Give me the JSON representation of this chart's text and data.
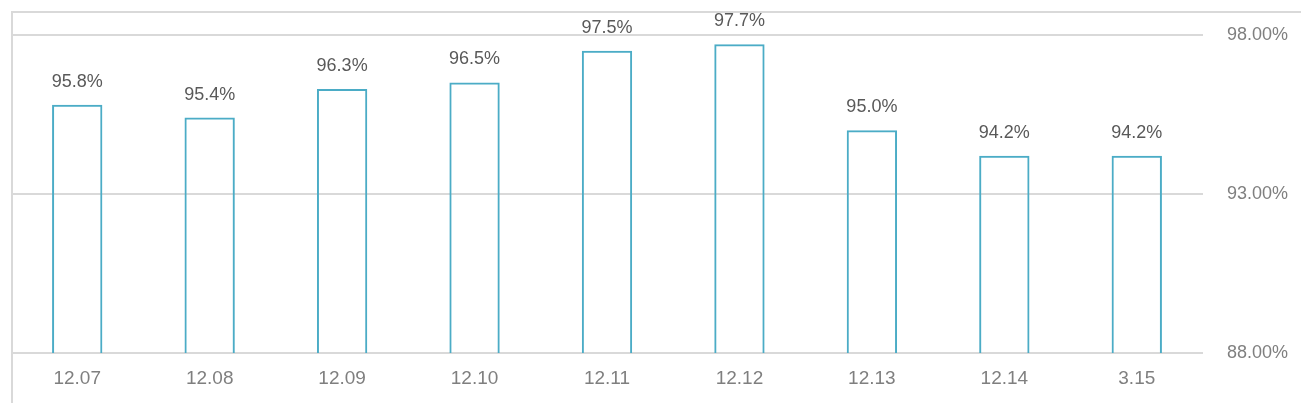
{
  "chart_data": {
    "type": "bar",
    "categories": [
      "12.07",
      "12.08",
      "12.09",
      "12.10",
      "12.11",
      "12.12",
      "12.13",
      "12.14",
      "3.15"
    ],
    "values": [
      95.8,
      95.4,
      96.3,
      96.5,
      97.5,
      97.7,
      95.0,
      94.2,
      94.2
    ],
    "value_labels": [
      "95.8%",
      "95.4%",
      "96.3%",
      "96.5%",
      "97.5%",
      "97.7%",
      "95.0%",
      "94.2%",
      "94.2%"
    ],
    "color": "#4bacc6",
    "ylim": [
      88,
      98
    ],
    "yticks": [
      {
        "value": 88,
        "label": "88.00%"
      },
      {
        "value": 93,
        "label": "93.00%"
      },
      {
        "value": 98,
        "label": "98.00%"
      }
    ],
    "grid": "y"
  }
}
